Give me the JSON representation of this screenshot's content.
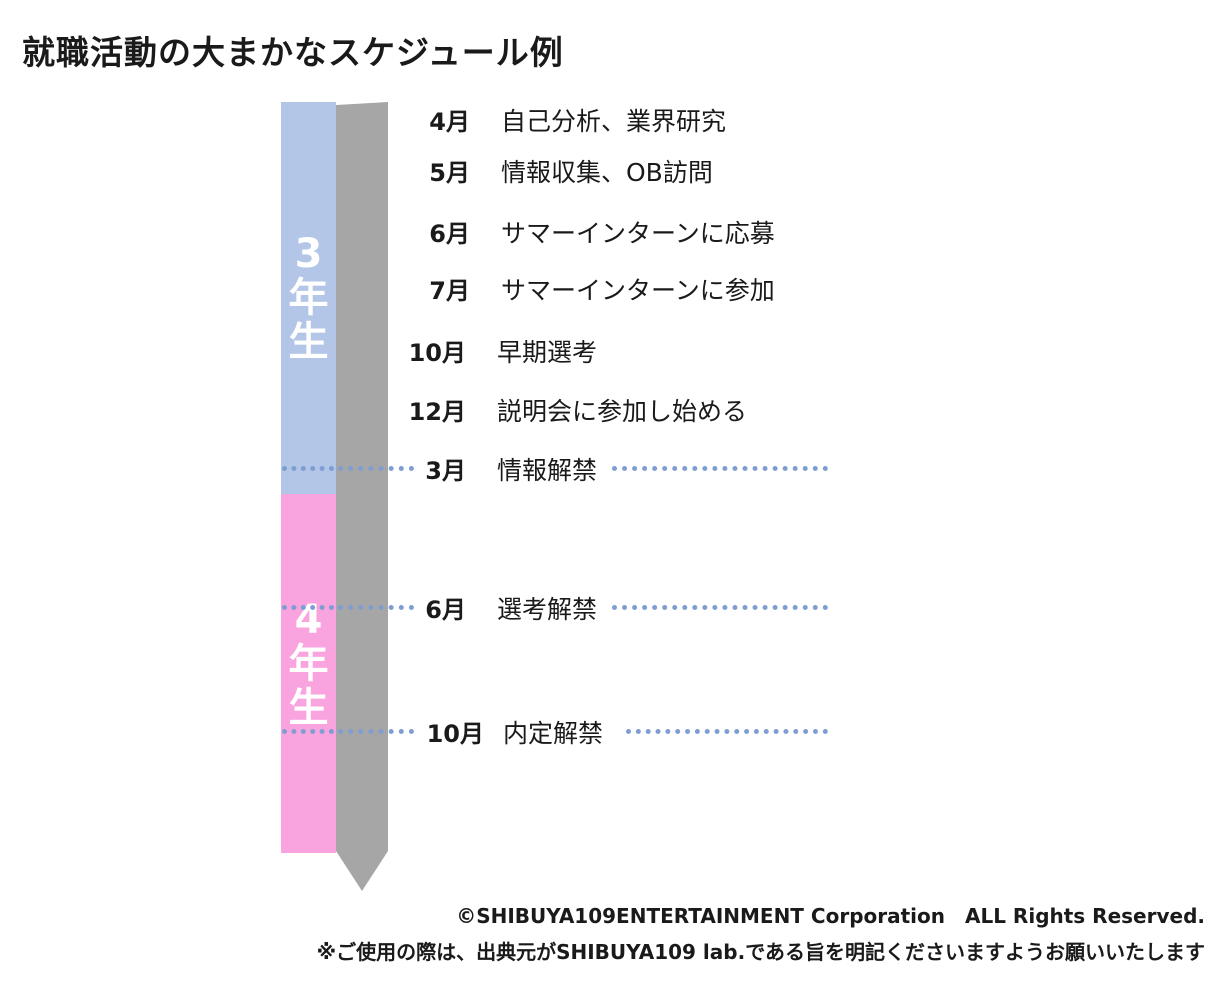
{
  "title": "就職活動の大まかなスケジュール例",
  "colors": {
    "year3_band": "#b3c6e7",
    "year4_band": "#f9a3df",
    "timeline_arrow": "#a6a6a6",
    "dotted_line": "#7e9ed2"
  },
  "years": [
    {
      "number": "3",
      "unit_char1": "年",
      "unit_char2": "生"
    },
    {
      "number": "4",
      "unit_char1": "年",
      "unit_char2": "生"
    }
  ],
  "events": [
    {
      "month": "4月",
      "label": "自己分析、業界研究"
    },
    {
      "month": "5月",
      "label": "情報収集、OB訪問"
    },
    {
      "month": "6月",
      "label": "サマーインターンに応募"
    },
    {
      "month": "7月",
      "label": "サマーインターンに参加"
    },
    {
      "month": "10月",
      "label": "早期選考"
    },
    {
      "month": "12月",
      "label": "説明会に参加し始める"
    },
    {
      "month": "3月",
      "label": "情報解禁"
    },
    {
      "month": "6月",
      "label": "選考解禁"
    },
    {
      "month": "10月",
      "label": "内定解禁"
    }
  ],
  "footer": {
    "copyright": "©SHIBUYA109ENTERTAINMENT Corporation　ALL Rights Reserved.",
    "notice": "※ご使用の際は、出典元がSHIBUYA109 lab.である旨を明記くださいますようお願いいたします"
  }
}
